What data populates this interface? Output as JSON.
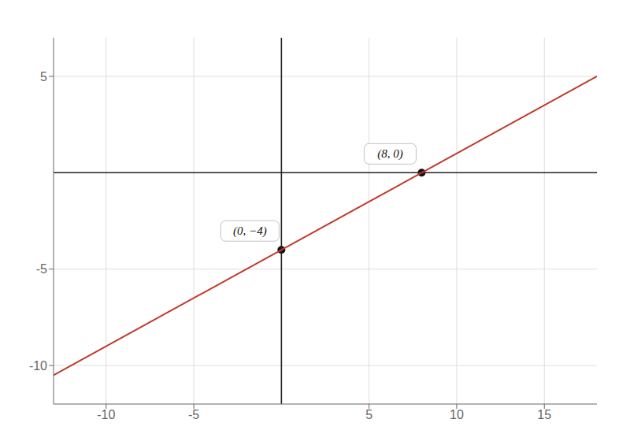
{
  "chart_data": {
    "type": "line",
    "series": [
      {
        "type": "line",
        "color": "#c0392b",
        "x": [
          -13,
          18
        ],
        "values": [
          -10.5,
          5
        ]
      },
      {
        "type": "scatter",
        "color": "#111111",
        "marker": "circle",
        "x": [
          0,
          8
        ],
        "values": [
          -4,
          0
        ]
      }
    ],
    "annotations": [
      {
        "text": "(0, −4)",
        "x": 0,
        "y": -4
      },
      {
        "text": "(8, 0)",
        "x": 8,
        "y": 0
      }
    ],
    "xlim": [
      -13,
      18
    ],
    "ylim": [
      -12,
      7
    ],
    "xticks": [
      -10,
      -5,
      5,
      10,
      15
    ],
    "yticks": [
      -10,
      -5,
      5
    ],
    "grid": true
  }
}
